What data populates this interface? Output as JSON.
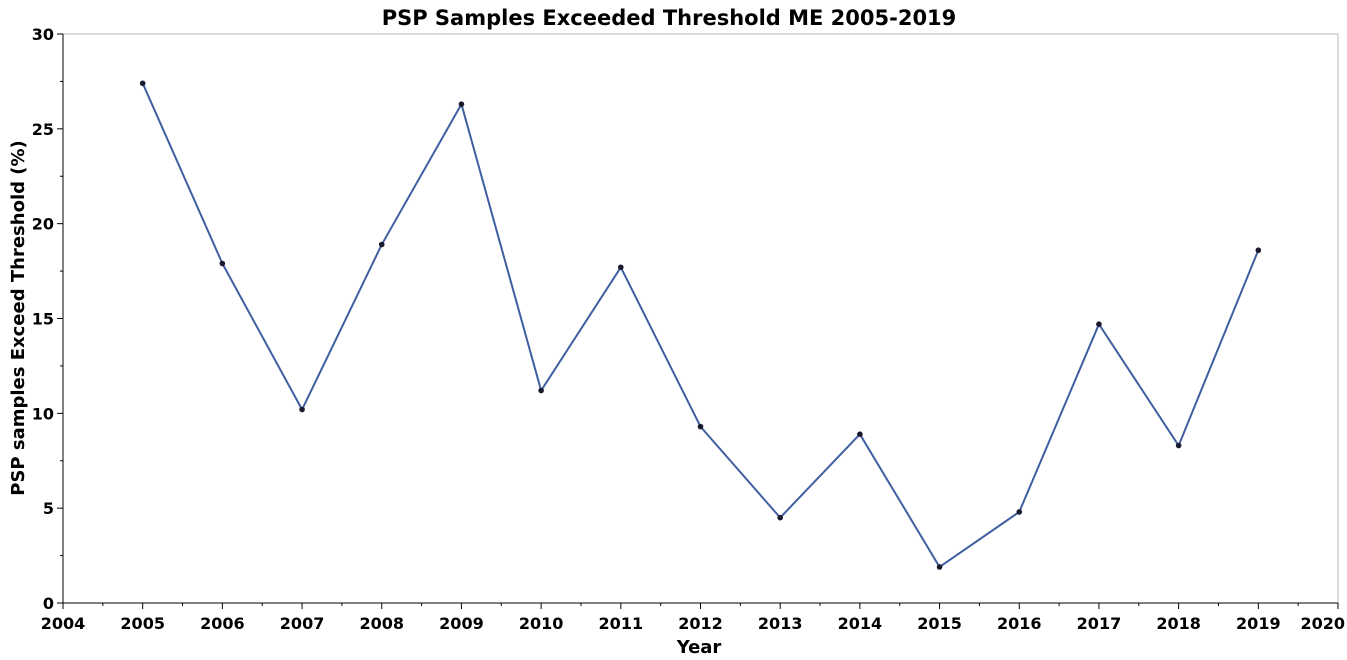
{
  "chart_data": {
    "type": "line",
    "title": "PSP Samples Exceeded Threshold ME 2005-2019",
    "xlabel": "Year",
    "ylabel": "PSP samples Exceed Threshold (%)",
    "xlim": [
      2004,
      2020
    ],
    "ylim": [
      0,
      30
    ],
    "xticks": [
      2004,
      2005,
      2006,
      2007,
      2008,
      2009,
      2010,
      2011,
      2012,
      2013,
      2014,
      2015,
      2016,
      2017,
      2018,
      2019,
      2020
    ],
    "yticks": [
      0,
      5,
      10,
      15,
      20,
      25,
      30
    ],
    "grid": false,
    "legend": "none",
    "line_color": "#3f5fa0",
    "marker_color": "#1a1a2e",
    "x": [
      2005,
      2006,
      2007,
      2008,
      2009,
      2010,
      2011,
      2012,
      2013,
      2014,
      2015,
      2016,
      2017,
      2018,
      2019
    ],
    "y": [
      27.4,
      17.9,
      10.2,
      18.9,
      26.3,
      11.2,
      17.7,
      9.3,
      4.5,
      8.9,
      1.9,
      4.8,
      14.7,
      8.3,
      18.6
    ]
  }
}
